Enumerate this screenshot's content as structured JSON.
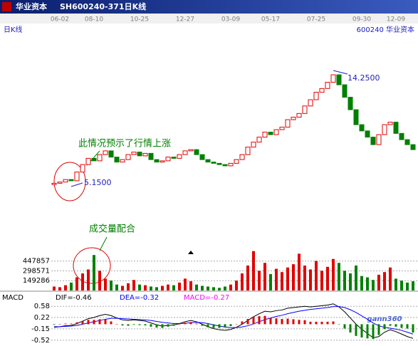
{
  "header": {
    "name": "华业资本",
    "code": "SH600240-371日K线"
  },
  "watermark": "gann360",
  "chart_data": [
    {
      "type": "candlestick",
      "title": "日K线",
      "stock": "600240 华业资本",
      "categories": [
        null,
        "06-02",
        null,
        null,
        null,
        null,
        null,
        "08-10",
        null,
        null,
        null,
        null,
        null,
        null,
        null,
        "10-25",
        null,
        null,
        null,
        null,
        null,
        null,
        null,
        "12-27",
        null,
        null,
        null,
        null,
        null,
        null,
        null,
        "03-09",
        null,
        null,
        null,
        null,
        null,
        null,
        "05-17",
        null,
        null,
        null,
        null,
        null,
        null,
        null,
        "07-25",
        null,
        null,
        null,
        null,
        null,
        null,
        null,
        "09-30",
        null,
        null,
        null,
        null,
        null,
        "12-09",
        null,
        null,
        null
      ],
      "open": [
        5.2,
        5.3,
        5.4,
        5.6,
        5.5,
        6.2,
        6.8,
        7.3,
        7.1,
        7.6,
        7.9,
        7.4,
        7.0,
        7.2,
        7.6,
        7.8,
        7.5,
        7.7,
        7.2,
        7.0,
        7.1,
        7.4,
        7.3,
        7.6,
        7.9,
        8.0,
        7.6,
        7.2,
        7.0,
        6.9,
        6.8,
        6.7,
        6.9,
        7.2,
        7.6,
        8.2,
        8.6,
        9.0,
        9.4,
        9.2,
        9.6,
        9.8,
        10.4,
        10.6,
        10.9,
        11.5,
        12.0,
        12.6,
        12.9,
        13.4,
        14.0,
        13.2,
        12.2,
        11.2,
        10.0,
        9.5,
        9.0,
        8.4,
        9.2,
        10.0,
        10.2,
        9.3,
        8.8,
        8.4
      ],
      "close": [
        5.3,
        5.4,
        5.6,
        5.5,
        6.2,
        6.8,
        7.3,
        7.1,
        7.6,
        7.9,
        7.4,
        7.0,
        7.2,
        7.6,
        7.8,
        7.5,
        7.7,
        7.2,
        7.0,
        7.1,
        7.4,
        7.3,
        7.6,
        7.9,
        8.0,
        7.6,
        7.2,
        7.0,
        6.9,
        6.8,
        6.7,
        6.9,
        7.2,
        7.6,
        8.2,
        8.6,
        9.0,
        9.4,
        9.2,
        9.6,
        9.8,
        10.4,
        10.6,
        10.9,
        11.5,
        12.0,
        12.6,
        12.9,
        13.4,
        14.0,
        13.2,
        12.2,
        11.2,
        10.0,
        9.5,
        9.0,
        8.4,
        9.2,
        10.0,
        10.2,
        9.3,
        8.8,
        8.4,
        8.0
      ],
      "ylim": [
        0.3,
        18
      ],
      "color_up": "#e00000",
      "color_down": "#008000",
      "high_label": "14.2500",
      "low_label": "5.1500",
      "annotations": [
        "此情况预示了行情上涨",
        "成交量配合"
      ]
    },
    {
      "type": "bar",
      "values": [
        60000,
        50000,
        80000,
        120000,
        200000,
        260000,
        320000,
        540000,
        300000,
        180000,
        150000,
        90000,
        70000,
        110000,
        160000,
        90000,
        80000,
        60000,
        50000,
        70000,
        90000,
        80000,
        120000,
        180000,
        140000,
        90000,
        70000,
        60000,
        50000,
        40000,
        60000,
        90000,
        150000,
        260000,
        380000,
        600000,
        300000,
        420000,
        250000,
        330000,
        280000,
        350000,
        400000,
        560000,
        380000,
        320000,
        450000,
        300000,
        360000,
        480000,
        420000,
        300000,
        260000,
        380000,
        220000,
        200000,
        160000,
        240000,
        280000,
        350000,
        180000,
        150000,
        120000,
        140000
      ],
      "ylim": [
        0,
        629000
      ],
      "yticks": [
        447857,
        298571,
        149286
      ],
      "grid": true
    },
    {
      "type": "macd",
      "title": "MACD",
      "ylim": [
        -0.66,
        0.77
      ],
      "yticks": [
        0.58,
        0.22,
        -0.15,
        -0.52
      ],
      "grid": true,
      "color_up": "#e00000",
      "color_down": "#008000",
      "series": [
        {
          "name": "DIF=-0.46",
          "color": "#000000",
          "values": [
            -0.1,
            -0.08,
            -0.05,
            -0.04,
            0.02,
            0.1,
            0.18,
            0.22,
            0.28,
            0.32,
            0.28,
            0.2,
            0.14,
            0.12,
            0.14,
            0.12,
            0.1,
            0.04,
            -0.02,
            -0.06,
            -0.04,
            -0.03,
            0.02,
            0.08,
            0.12,
            0.08,
            0.0,
            -0.08,
            -0.14,
            -0.18,
            -0.2,
            -0.17,
            -0.1,
            0.0,
            0.12,
            0.24,
            0.34,
            0.42,
            0.4,
            0.44,
            0.46,
            0.52,
            0.54,
            0.56,
            0.58,
            0.56,
            0.58,
            0.6,
            0.62,
            0.66,
            0.56,
            0.4,
            0.2,
            0.0,
            -0.16,
            -0.3,
            -0.44,
            -0.4,
            -0.26,
            -0.18,
            -0.24,
            -0.32,
            -0.4,
            -0.46
          ]
        },
        {
          "name": "DEA=-0.32",
          "color": "#0000ff",
          "values": [
            -0.08,
            -0.08,
            -0.07,
            -0.06,
            -0.04,
            0.0,
            0.04,
            0.08,
            0.12,
            0.16,
            0.19,
            0.19,
            0.18,
            0.17,
            0.16,
            0.15,
            0.14,
            0.12,
            0.09,
            0.06,
            0.04,
            0.02,
            0.02,
            0.03,
            0.05,
            0.06,
            0.05,
            0.02,
            -0.02,
            -0.06,
            -0.09,
            -0.11,
            -0.11,
            -0.09,
            -0.05,
            0.01,
            0.08,
            0.15,
            0.2,
            0.25,
            0.29,
            0.34,
            0.38,
            0.42,
            0.45,
            0.48,
            0.5,
            0.52,
            0.54,
            0.57,
            0.57,
            0.54,
            0.47,
            0.38,
            0.27,
            0.16,
            0.04,
            -0.05,
            -0.1,
            -0.13,
            -0.16,
            -0.2,
            -0.26,
            -0.32
          ]
        },
        {
          "name": "MACD=-0.27",
          "color": "#ff00ff",
          "style": "histogram",
          "values": [
            -0.02,
            0,
            0.02,
            0.02,
            0.06,
            0.1,
            0.14,
            0.14,
            0.16,
            0.16,
            0.09,
            0.01,
            -0.04,
            -0.05,
            -0.02,
            -0.03,
            -0.04,
            -0.08,
            -0.11,
            -0.12,
            -0.08,
            -0.05,
            0,
            0.05,
            0.07,
            0.02,
            -0.05,
            -0.1,
            -0.12,
            -0.12,
            -0.11,
            -0.06,
            0.01,
            0.09,
            0.17,
            0.23,
            0.26,
            0.27,
            0.2,
            0.19,
            0.17,
            0.18,
            0.16,
            0.14,
            0.13,
            0.08,
            0.08,
            0.08,
            0.08,
            0.09,
            -0.01,
            -0.14,
            -0.27,
            -0.38,
            -0.43,
            -0.46,
            -0.48,
            -0.35,
            -0.16,
            -0.05,
            -0.08,
            -0.12,
            -0.14,
            -0.27
          ]
        }
      ]
    }
  ]
}
